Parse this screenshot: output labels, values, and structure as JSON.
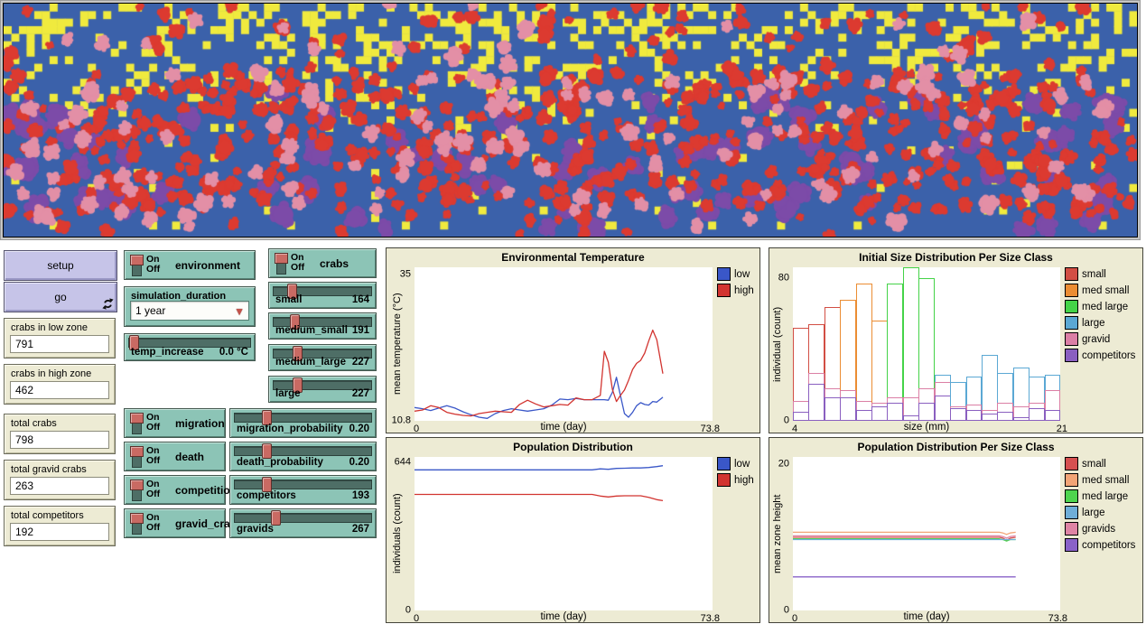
{
  "world": {
    "colors": {
      "water": "#3b61aa",
      "sand": "#f0ea3e",
      "crab": "#dc3a30",
      "gravid": "#e38fa6",
      "competitor": "#7c4ba8"
    },
    "grid": {
      "cols": 148,
      "rows": 31
    },
    "agents": {
      "crabs": 560,
      "gravids": 140,
      "competitors": 95
    },
    "seed": 11
  },
  "controls": {
    "on_label": "On",
    "off_label": "Off",
    "setup_label": "setup",
    "go_label": "go",
    "monitors": [
      {
        "label": "crabs in low zone",
        "value": "791"
      },
      {
        "label": "crabs in high zone",
        "value": "462"
      },
      {
        "label": "total crabs",
        "value": "798"
      },
      {
        "label": "total gravid crabs",
        "value": "263"
      },
      {
        "label": "total competitors",
        "value": "192"
      }
    ],
    "switches": [
      {
        "label": "environment",
        "state": "on"
      },
      {
        "label": "crabs",
        "state": "on"
      },
      {
        "label": "migration",
        "state": "on"
      },
      {
        "label": "death",
        "state": "on"
      },
      {
        "label": "competition",
        "state": "on"
      },
      {
        "label": "gravid_crabs",
        "state": "on"
      }
    ],
    "chooser": {
      "label": "simulation_duration",
      "value": "1 year"
    },
    "sliders": [
      {
        "label": "temp_increase",
        "value": "0.0 °C",
        "frac": 0.0
      },
      {
        "label": "small",
        "value": "164",
        "frac": 0.15
      },
      {
        "label": "medium_small",
        "value": "191",
        "frac": 0.18
      },
      {
        "label": "medium_large",
        "value": "227",
        "frac": 0.21
      },
      {
        "label": "large",
        "value": "227",
        "frac": 0.21
      },
      {
        "label": "migration_probability",
        "value": "0.20",
        "frac": 0.21
      },
      {
        "label": "death_probability",
        "value": "0.20",
        "frac": 0.21
      },
      {
        "label": "competitors",
        "value": "193",
        "frac": 0.21
      },
      {
        "label": "gravids",
        "value": "267",
        "frac": 0.28
      }
    ]
  },
  "plots": {
    "temperature": {
      "type": "line",
      "title": "Environmental Temperature",
      "xlabel": "time (day)",
      "ylabel": "mean temperature (°C)",
      "xlim": [
        0,
        73.8
      ],
      "ylim": [
        10.8,
        36.2
      ],
      "xticks": [
        {
          "v": 0,
          "label": "0"
        },
        {
          "v": 73.8,
          "label": "73.8"
        }
      ],
      "yticks": [
        {
          "v": 35,
          "label": "35"
        },
        {
          "v": 10.8,
          "label": "10.8"
        }
      ],
      "legend": [
        {
          "label": "low",
          "color": "#3a57c8"
        },
        {
          "label": "high",
          "color": "#d23430"
        }
      ],
      "series": [
        {
          "name": "low",
          "color": "#3a57c8",
          "x": [
            0,
            2,
            4,
            6,
            8,
            10,
            12,
            14,
            16,
            18,
            20,
            22,
            24,
            26,
            28,
            30,
            32,
            34,
            36,
            38,
            40,
            42,
            44,
            46,
            47,
            48,
            49,
            50,
            51,
            52,
            53,
            54,
            55,
            56,
            57,
            58,
            59,
            60,
            61.5
          ],
          "y": [
            13.0,
            12.8,
            12.5,
            12.9,
            13.3,
            12.9,
            12.3,
            11.8,
            11.4,
            11.2,
            12.0,
            12.5,
            12.8,
            12.6,
            12.4,
            12.6,
            12.8,
            13.4,
            14.4,
            14.3,
            14.5,
            14.3,
            14.3,
            14.3,
            14.3,
            14.2,
            15.5,
            18.0,
            15.0,
            12.0,
            11.4,
            12.2,
            13.3,
            13.8,
            13.5,
            13.4,
            14.0,
            13.9,
            14.7
          ]
        },
        {
          "name": "high",
          "color": "#d23430",
          "x": [
            0,
            2,
            4,
            6,
            8,
            10,
            12,
            14,
            16,
            18,
            20,
            22,
            24,
            26,
            28,
            30,
            32,
            34,
            36,
            38,
            40,
            42,
            44,
            46,
            47,
            48,
            49,
            50,
            51,
            52,
            53,
            54,
            55,
            56,
            57,
            58,
            59,
            60,
            61.5
          ],
          "y": [
            12.4,
            12.6,
            13.3,
            13.0,
            12.2,
            11.9,
            11.7,
            11.6,
            12.0,
            12.2,
            12.4,
            12.3,
            12.2,
            13.5,
            14.2,
            13.6,
            13.1,
            13.3,
            13.5,
            13.4,
            14.6,
            14.3,
            14.3,
            15.0,
            22.3,
            20.5,
            16.0,
            14.0,
            15.0,
            15.9,
            17.5,
            19.3,
            20.3,
            20.8,
            22.0,
            24.0,
            25.8,
            24.2,
            18.6
          ]
        }
      ]
    },
    "population": {
      "type": "line",
      "title": "Population Distribution",
      "xlabel": "time (day)",
      "ylabel": "individuals (count)",
      "xlim": [
        0,
        73.8
      ],
      "ylim": [
        0,
        668
      ],
      "xticks": [
        {
          "v": 0,
          "label": "0"
        },
        {
          "v": 73.8,
          "label": "73.8"
        }
      ],
      "yticks": [
        {
          "v": 644,
          "label": "644"
        },
        {
          "v": 0,
          "label": "0"
        }
      ],
      "legend": [
        {
          "label": "low",
          "color": "#3a57c8"
        },
        {
          "label": "high",
          "color": "#d23430"
        }
      ],
      "series": [
        {
          "name": "low",
          "color": "#3a57c8",
          "x": [
            0,
            5,
            10,
            15,
            20,
            25,
            30,
            35,
            40,
            44,
            46,
            48,
            50,
            52,
            54,
            56,
            58,
            60,
            61.5
          ],
          "y": [
            612,
            612,
            612,
            612,
            612,
            612,
            612,
            612,
            612,
            612,
            616,
            614,
            618,
            619,
            620,
            620,
            622,
            626,
            630
          ]
        },
        {
          "name": "high",
          "color": "#d23430",
          "x": [
            0,
            5,
            10,
            15,
            20,
            25,
            30,
            35,
            40,
            44,
            46,
            48,
            50,
            52,
            54,
            56,
            58,
            60,
            61.5
          ],
          "y": [
            505,
            505,
            505,
            505,
            505,
            505,
            505,
            505,
            505,
            505,
            498,
            494,
            498,
            499,
            499,
            499,
            492,
            482,
            478
          ]
        }
      ]
    },
    "histogram": {
      "type": "bars",
      "title": "Initial Size Distribution Per Size Class",
      "xlabel": "size (mm)",
      "ylabel": "individual (count)",
      "xlim": [
        4,
        21
      ],
      "ylim": [
        0,
        86
      ],
      "xticks": [
        {
          "v": 4,
          "label": "4"
        },
        {
          "v": 21,
          "label": "21"
        }
      ],
      "yticks": [
        {
          "v": 80,
          "label": "80"
        },
        {
          "v": 0,
          "label": "0"
        }
      ],
      "bin_start": 4,
      "bin_width": 1,
      "palette": {
        "small": "#d24e44",
        "med_small": "#eb8d33",
        "med_large": "#44d348",
        "large": "#5ba8d4",
        "gravid": "#db7fa5",
        "competitors": "#8a5fc0"
      },
      "classes": [
        "small",
        "small",
        "small",
        "med_small",
        "med_small",
        "med_small",
        "med_large",
        "med_large",
        "med_large",
        "large",
        "large",
        "large",
        "large",
        "large",
        "large",
        "large",
        "large"
      ],
      "main": [
        52,
        54,
        64,
        68,
        77,
        56,
        77,
        86,
        80,
        26,
        22,
        25,
        37,
        27,
        30,
        25,
        26
      ],
      "gravid": [
        11,
        27,
        18,
        17,
        11,
        10,
        13,
        13,
        18,
        22,
        8,
        9,
        6,
        10,
        8,
        10,
        17
      ],
      "competitors": [
        5,
        21,
        13,
        13,
        6,
        8,
        10,
        3,
        10,
        14,
        7,
        6,
        4,
        5,
        2,
        7,
        6
      ],
      "legend": [
        {
          "label": "small",
          "color": "#d24e44"
        },
        {
          "label": "med small",
          "color": "#eb8d33"
        },
        {
          "label": "med large",
          "color": "#44d348"
        },
        {
          "label": "large",
          "color": "#5ba8d4"
        },
        {
          "label": "gravid",
          "color": "#db7fa5"
        },
        {
          "label": "competitors",
          "color": "#8a5fc0"
        }
      ]
    },
    "per_size": {
      "type": "line",
      "title": "Population Distribution Per Size Class",
      "xlabel": "time (day)",
      "ylabel": "mean zone height",
      "xlim": [
        0,
        73.8
      ],
      "ylim": [
        0,
        21
      ],
      "xticks": [
        {
          "v": 0,
          "label": "0"
        },
        {
          "v": 73.8,
          "label": "73.8"
        }
      ],
      "yticks": [
        {
          "v": 20,
          "label": "20"
        },
        {
          "v": 0,
          "label": "0"
        }
      ],
      "legend": [
        {
          "label": "small",
          "color": "#d65050"
        },
        {
          "label": "med small",
          "color": "#f2a476"
        },
        {
          "label": "med large",
          "color": "#4ed44e"
        },
        {
          "label": "large",
          "color": "#6faed8"
        },
        {
          "label": "gravids",
          "color": "#de84a4"
        },
        {
          "label": "competitors",
          "color": "#8a62c8"
        }
      ],
      "series": [
        {
          "name": "med small",
          "color": "#f2a476",
          "x": [
            0,
            10,
            20,
            30,
            40,
            50,
            55,
            57,
            58,
            59,
            60,
            61.5
          ],
          "y": [
            10.7,
            10.7,
            10.7,
            10.7,
            10.7,
            10.7,
            10.7,
            10.7,
            10.6,
            10.4,
            10.6,
            10.7
          ]
        },
        {
          "name": "gravids",
          "color": "#de84a4",
          "x": [
            0,
            10,
            20,
            30,
            40,
            50,
            55,
            57,
            58,
            59,
            60,
            61.5
          ],
          "y": [
            10.2,
            10.2,
            10.2,
            10.2,
            10.2,
            10.2,
            10.2,
            10.2,
            10.1,
            9.9,
            10.1,
            10.2
          ]
        },
        {
          "name": "small",
          "color": "#d65050",
          "x": [
            0,
            10,
            20,
            30,
            40,
            50,
            55,
            57,
            58,
            59,
            60,
            61.5
          ],
          "y": [
            10.0,
            10.0,
            10.0,
            10.0,
            10.0,
            10.0,
            10.0,
            10.0,
            9.9,
            9.6,
            9.9,
            10.0
          ]
        },
        {
          "name": "med large",
          "color": "#4ed44e",
          "x": [
            0,
            10,
            20,
            30,
            40,
            50,
            55,
            57,
            58,
            59,
            60,
            61.5
          ],
          "y": [
            9.8,
            9.8,
            9.8,
            9.8,
            9.8,
            9.8,
            9.8,
            9.8,
            9.7,
            9.5,
            9.7,
            9.7
          ]
        },
        {
          "name": "large",
          "color": "#6faed8",
          "x": [
            0,
            10,
            20,
            30,
            40,
            50,
            55,
            57,
            58,
            59,
            60,
            61.5
          ],
          "y": [
            9.7,
            9.7,
            9.7,
            9.7,
            9.7,
            9.7,
            9.7,
            9.7,
            9.7,
            9.7,
            9.7,
            9.7
          ]
        },
        {
          "name": "competitors",
          "color": "#8a62c8",
          "x": [
            0,
            10,
            20,
            30,
            40,
            50,
            55,
            57,
            58,
            59,
            60,
            61.5
          ],
          "y": [
            4.6,
            4.6,
            4.6,
            4.6,
            4.6,
            4.6,
            4.6,
            4.6,
            4.6,
            4.6,
            4.6,
            4.6
          ]
        }
      ]
    }
  }
}
